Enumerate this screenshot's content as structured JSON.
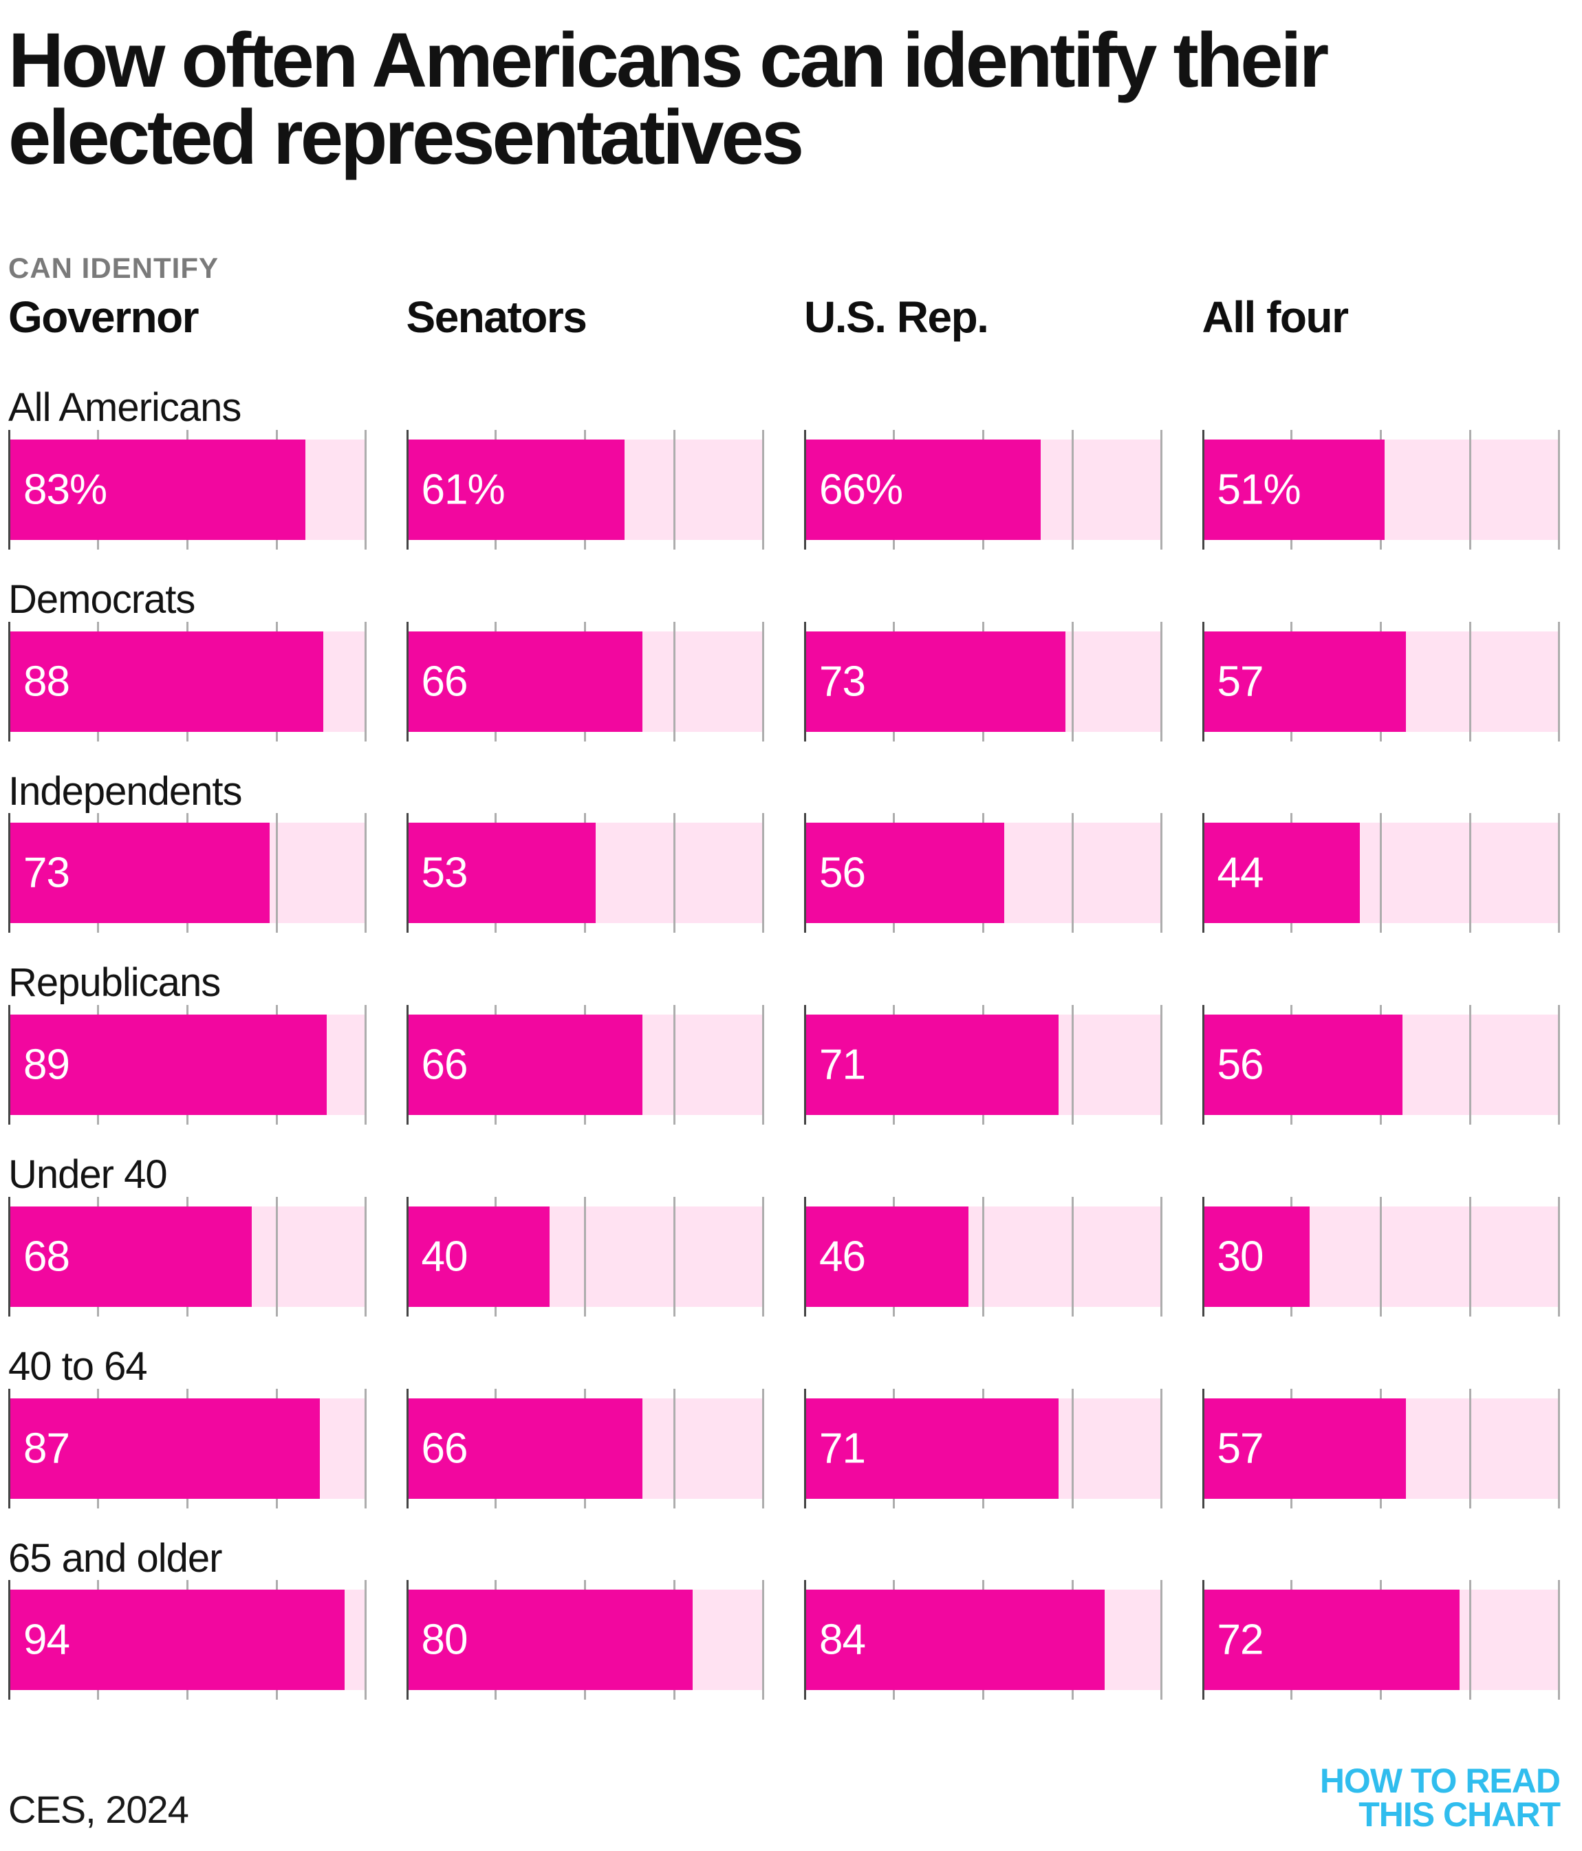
{
  "title": {
    "line1": "How often Americans can identify their",
    "line2": "elected representatives"
  },
  "kicker": "CAN IDENTIFY",
  "columns": [
    "Governor",
    "Senators",
    "U.S. Rep.",
    "All four"
  ],
  "rows": [
    {
      "label": "All Americans",
      "values": [
        83,
        61,
        66,
        51
      ],
      "labels": [
        "83%",
        "61%",
        "66%",
        "51%"
      ]
    },
    {
      "label": "Democrats",
      "values": [
        88,
        66,
        73,
        57
      ],
      "labels": [
        "88",
        "66",
        "73",
        "57"
      ]
    },
    {
      "label": "Independents",
      "values": [
        73,
        53,
        56,
        44
      ],
      "labels": [
        "73",
        "53",
        "56",
        "44"
      ]
    },
    {
      "label": "Republicans",
      "values": [
        89,
        66,
        71,
        56
      ],
      "labels": [
        "89",
        "66",
        "71",
        "56"
      ]
    },
    {
      "label": "Under 40",
      "values": [
        68,
        40,
        46,
        30
      ],
      "labels": [
        "68",
        "40",
        "46",
        "30"
      ]
    },
    {
      "label": "40 to 64",
      "values": [
        87,
        66,
        71,
        57
      ],
      "labels": [
        "87",
        "66",
        "71",
        "57"
      ]
    },
    {
      "label": "65 and older",
      "values": [
        94,
        80,
        84,
        72
      ],
      "labels": [
        "94",
        "80",
        "84",
        "72"
      ]
    }
  ],
  "axis": {
    "ticks_percent": [
      0,
      25,
      50,
      75,
      100
    ]
  },
  "source": "CES, 2024",
  "logo": {
    "line1": "HOW TO READ",
    "line2": "THIS CHART"
  },
  "colors": {
    "bar_fill": "#F2079F",
    "bar_track": "#FFE2F2",
    "tick": "#ADADAD",
    "tick_zero": "#444444",
    "kicker_gray": "#7A7A7A",
    "logo_cyan": "#30BDEE"
  },
  "chart_data": {
    "type": "bar",
    "orientation": "horizontal",
    "title": "How often Americans can identify their elected representatives",
    "subtitle": "CAN IDENTIFY",
    "categories": [
      "All Americans",
      "Democrats",
      "Independents",
      "Republicans",
      "Under 40",
      "40 to 64",
      "65 and older"
    ],
    "series": [
      {
        "name": "Governor",
        "values": [
          83,
          88,
          73,
          89,
          68,
          87,
          94
        ]
      },
      {
        "name": "Senators",
        "values": [
          61,
          66,
          53,
          66,
          40,
          66,
          80
        ]
      },
      {
        "name": "U.S. Rep.",
        "values": [
          66,
          73,
          56,
          71,
          46,
          71,
          84
        ]
      },
      {
        "name": "All four",
        "values": [
          51,
          57,
          44,
          56,
          30,
          57,
          72
        ]
      }
    ],
    "unit": "%",
    "xlim": [
      0,
      100
    ],
    "x_ticks": [
      0,
      25,
      50,
      75,
      100
    ],
    "value_labels_shown": true,
    "grid": "ticks-only",
    "legend_position": "column-headers",
    "source": "CES, 2024"
  }
}
